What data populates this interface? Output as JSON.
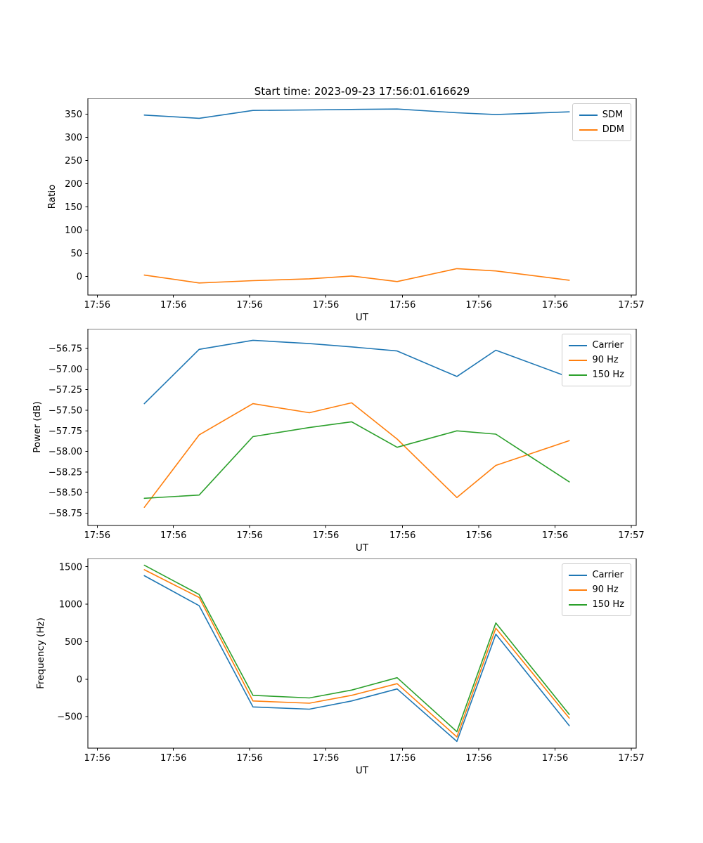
{
  "title": "Start time: 2023-09-23 17:56:01.616629",
  "palette": {
    "blue": "#1f77b4",
    "orange": "#ff7f0e",
    "green": "#2ca02c"
  },
  "chart_data": [
    {
      "type": "line",
      "name": "ratio",
      "xlabel": "UT",
      "ylabel": "Ratio",
      "x_unit": "axis-fraction",
      "x": [
        0.103,
        0.203,
        0.301,
        0.404,
        0.481,
        0.564,
        0.673,
        0.744,
        0.878
      ],
      "ylim": [
        -40,
        384
      ],
      "yticks": {
        "values": [
          350,
          300,
          250,
          200,
          150,
          100,
          50,
          0
        ],
        "labels": [
          "350",
          "300",
          "250",
          "200",
          "150",
          "100",
          "50",
          "0"
        ]
      },
      "xticks": {
        "positions": [
          0.017,
          0.156,
          0.295,
          0.434,
          0.574,
          0.713,
          0.852,
          0.991
        ],
        "labels": [
          "17:56",
          "17:56",
          "17:56",
          "17:56",
          "17:56",
          "17:56",
          "17:56",
          "17:57"
        ]
      },
      "legend_position": "upper-right",
      "series": [
        {
          "name": "SDM",
          "color": "#1f77b4",
          "values": [
            348,
            341,
            358,
            359,
            360,
            361,
            353,
            349,
            355
          ]
        },
        {
          "name": "DDM",
          "color": "#ff7f0e",
          "values": [
            3,
            -14,
            -9,
            -5,
            1,
            -11,
            17,
            12,
            -8
          ]
        }
      ]
    },
    {
      "type": "line",
      "name": "power",
      "xlabel": "UT",
      "ylabel": "Power (dB)",
      "x_unit": "axis-fraction",
      "x": [
        0.103,
        0.203,
        0.301,
        0.404,
        0.481,
        0.564,
        0.673,
        0.744,
        0.878
      ],
      "ylim": [
        -58.9,
        -56.51
      ],
      "yticks": {
        "values": [
          -56.75,
          -57.0,
          -57.25,
          -57.5,
          -57.75,
          -58.0,
          -58.25,
          -58.5,
          -58.75
        ],
        "labels": [
          "−56.75",
          "−57.00",
          "−57.25",
          "−57.50",
          "−57.75",
          "−58.00",
          "−58.25",
          "−58.50",
          "−58.75"
        ]
      },
      "xticks": {
        "positions": [
          0.017,
          0.156,
          0.295,
          0.434,
          0.574,
          0.713,
          0.852,
          0.991
        ],
        "labels": [
          "17:56",
          "17:56",
          "17:56",
          "17:56",
          "17:56",
          "17:56",
          "17:56",
          "17:57"
        ]
      },
      "legend_position": "upper-right",
      "series": [
        {
          "name": "Carrier",
          "color": "#1f77b4",
          "values": [
            -57.42,
            -56.76,
            -56.65,
            -56.69,
            -56.73,
            -56.78,
            -57.09,
            -56.77,
            -57.1
          ]
        },
        {
          "name": "90 Hz",
          "color": "#ff7f0e",
          "values": [
            -58.68,
            -57.8,
            -57.42,
            -57.53,
            -57.41,
            -57.85,
            -58.56,
            -58.17,
            -57.87
          ]
        },
        {
          "name": "150 Hz",
          "color": "#2ca02c",
          "values": [
            -58.57,
            -58.53,
            -57.82,
            -57.71,
            -57.64,
            -57.95,
            -57.75,
            -57.79,
            -58.37
          ]
        }
      ]
    },
    {
      "type": "line",
      "name": "frequency",
      "xlabel": "UT",
      "ylabel": "Frequency (Hz)",
      "x_unit": "axis-fraction",
      "x": [
        0.103,
        0.203,
        0.301,
        0.404,
        0.481,
        0.564,
        0.673,
        0.744,
        0.878
      ],
      "ylim": [
        -920,
        1610
      ],
      "yticks": {
        "values": [
          1500,
          1000,
          500,
          0,
          -500
        ],
        "labels": [
          "1500",
          "1000",
          "500",
          "0",
          "−500"
        ]
      },
      "xticks": {
        "positions": [
          0.017,
          0.156,
          0.295,
          0.434,
          0.574,
          0.713,
          0.852,
          0.991
        ],
        "labels": [
          "17:56",
          "17:56",
          "17:56",
          "17:56",
          "17:56",
          "17:56",
          "17:56",
          "17:57"
        ]
      },
      "legend_position": "upper-right",
      "series": [
        {
          "name": "Carrier",
          "color": "#1f77b4",
          "values": [
            1380,
            980,
            -370,
            -400,
            -290,
            -130,
            -830,
            600,
            -620
          ]
        },
        {
          "name": "90 Hz",
          "color": "#ff7f0e",
          "values": [
            1460,
            1090,
            -290,
            -320,
            -215,
            -60,
            -770,
            680,
            -520
          ]
        },
        {
          "name": "150 Hz",
          "color": "#2ca02c",
          "values": [
            1520,
            1130,
            -215,
            -250,
            -145,
            20,
            -700,
            750,
            -470
          ]
        }
      ]
    }
  ]
}
